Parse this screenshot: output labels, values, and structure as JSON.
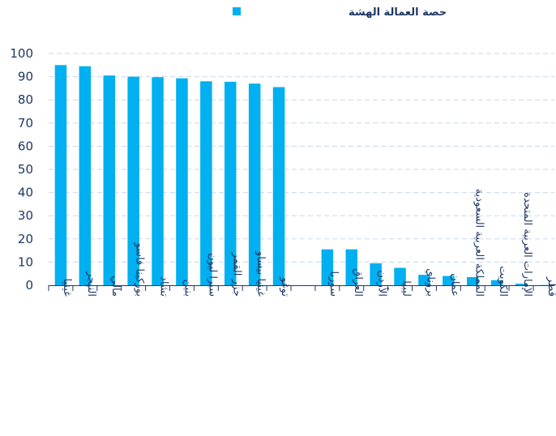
{
  "chart_data": {
    "type": "bar",
    "title": "",
    "xlabel": "",
    "ylabel": "",
    "ylim": [
      0,
      100
    ],
    "yticks": [
      0,
      10,
      20,
      30,
      40,
      50,
      60,
      70,
      80,
      90,
      100
    ],
    "grid": true,
    "legend_position": "top",
    "categories": [
      "غينيا",
      "النيجر",
      "مالي",
      "بوركينا فاسو",
      "تشاد",
      "بنين",
      "سيرا ليون",
      "جزر القمر",
      "غينيا بيساو",
      "توغو",
      "",
      "سوريا",
      "العراق",
      "الأردن",
      "ليبيا",
      "بروناي",
      "عمان",
      "المملكة العربية السعودية",
      "الكويت",
      "الإمارات العربية المتحدة",
      "قطر"
    ],
    "series": [
      {
        "name": "حصة العمالة الهشة",
        "color": "#00b0f0",
        "values": [
          95,
          94.5,
          90.5,
          90,
          89.8,
          89.3,
          88,
          87.8,
          87,
          85.5,
          null,
          15.5,
          15.5,
          9.5,
          7.5,
          4.5,
          4,
          3.5,
          2.2,
          0.7,
          0.1
        ]
      }
    ]
  }
}
